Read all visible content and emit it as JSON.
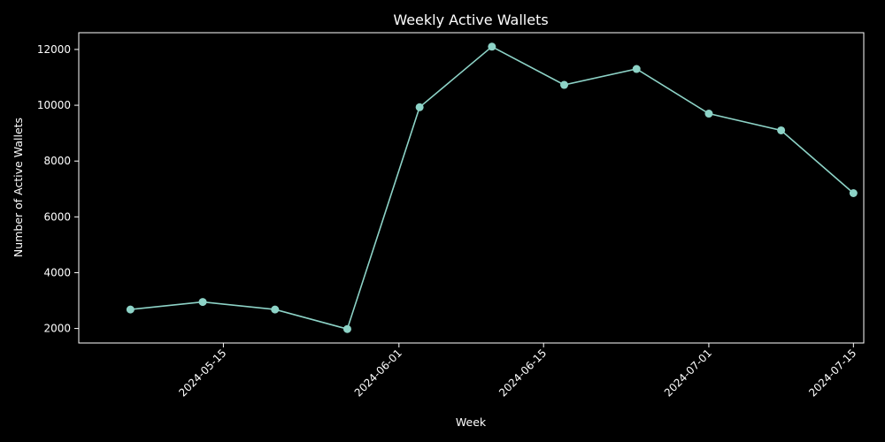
{
  "chart_data": {
    "type": "line",
    "title": "Weekly Active Wallets",
    "xlabel": "Week",
    "ylabel": "Number of Active Wallets",
    "x": [
      "2024-05-06",
      "2024-05-13",
      "2024-05-20",
      "2024-05-27",
      "2024-06-03",
      "2024-06-10",
      "2024-06-17",
      "2024-06-24",
      "2024-07-01",
      "2024-07-08",
      "2024-07-15"
    ],
    "series": [
      {
        "values": [
          2680,
          2950,
          2680,
          1980,
          9930,
          12100,
          10730,
          11300,
          9700,
          9100,
          6850
        ]
      }
    ],
    "xticks": [
      "2024-05-15",
      "2024-06-01",
      "2024-06-15",
      "2024-07-01",
      "2024-07-15"
    ],
    "yticks": [
      2000,
      4000,
      6000,
      8000,
      10000,
      12000
    ],
    "xlim": [
      "2024-05-01",
      "2024-07-16"
    ],
    "ylim": [
      1480,
      12600
    ],
    "grid": false,
    "legend": "none",
    "colors": {
      "line": "#8dd3c7",
      "background": "#000000",
      "text": "#ffffff",
      "axes": "#ffffff"
    }
  }
}
